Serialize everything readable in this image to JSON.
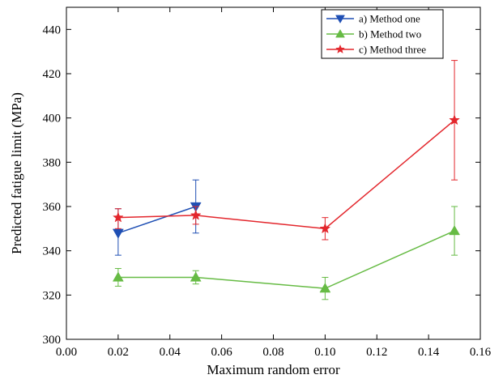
{
  "chart_data": {
    "type": "line",
    "xlabel": "Maximum random error",
    "ylabel": "Predicted fatigue limit (MPa)",
    "xlim": [
      0.0,
      0.16
    ],
    "ylim": [
      300,
      450
    ],
    "xticks": [
      "0.00",
      "0.02",
      "0.04",
      "0.06",
      "0.08",
      "0.10",
      "0.12",
      "0.14",
      "0.16"
    ],
    "yticks": [
      "300",
      "320",
      "340",
      "360",
      "380",
      "400",
      "420",
      "440"
    ],
    "grid": false,
    "legend_position": "top-right",
    "series": [
      {
        "name": "a) Method one",
        "color": "#1f4fb4",
        "marker": "triangle-down",
        "x": [
          0.02,
          0.05
        ],
        "y": [
          348,
          360
        ],
        "err_low": [
          338,
          348
        ],
        "err_high": [
          359,
          372
        ]
      },
      {
        "name": "b) Method two",
        "color": "#66bb44",
        "marker": "triangle-up",
        "x": [
          0.02,
          0.05,
          0.1,
          0.15
        ],
        "y": [
          328,
          328,
          323,
          349
        ],
        "err_low": [
          324,
          325,
          318,
          338
        ],
        "err_high": [
          332,
          331,
          328,
          360
        ]
      },
      {
        "name": "c) Method three",
        "color": "#e3262c",
        "marker": "star",
        "x": [
          0.02,
          0.05,
          0.1,
          0.15
        ],
        "y": [
          355,
          356,
          350,
          399
        ],
        "err_low": [
          350,
          352,
          345,
          372
        ],
        "err_high": [
          359,
          360,
          355,
          426
        ]
      }
    ]
  }
}
